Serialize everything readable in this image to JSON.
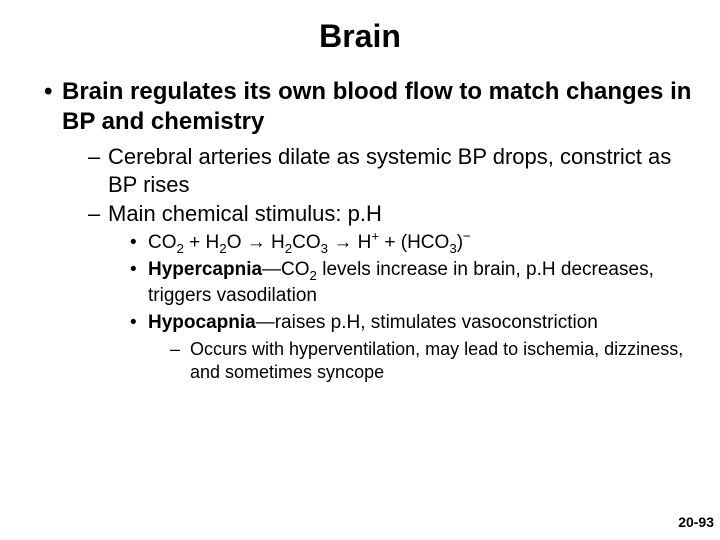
{
  "title": "Brain",
  "bullet_l1": "•",
  "bullet_l2": "–",
  "bullet_l3": "•",
  "bullet_l4": "–",
  "main_point": "Brain regulates its own blood flow to match changes in BP and chemistry",
  "sub1": "Cerebral arteries dilate as systemic BP drops, constrict as BP rises",
  "sub2": "Main chemical stimulus: p.H",
  "eq": {
    "co2": "CO",
    "two_a": "2",
    "plus1": " + H",
    "two_b": "2",
    "o": "O ",
    "arr1": "→",
    "h2": " H",
    "two_c": "2",
    "co3": "CO",
    "three_a": "3",
    "sp": " ",
    "arr2": "→",
    "hplus_h": " H",
    "hplus_sup": "+",
    "plus2": " + (HCO",
    "three_b": "3",
    "close": ")",
    "minus": "−"
  },
  "hypercap_term": "Hypercapnia",
  "hypercap_rest_a": "—CO",
  "hypercap_two": "2",
  "hypercap_rest_b": " levels increase in brain, p.H decreases, triggers vasodilation",
  "hypocap_term": "Hypocapnia",
  "hypocap_rest": "—raises p.H, stimulates vasoconstriction",
  "hypocap_detail": "Occurs with hyperventilation, may lead to ischemia, dizziness, and sometimes syncope",
  "page_number": "20-93",
  "colors": {
    "text": "#000000",
    "background": "#ffffff"
  },
  "fonts": {
    "title_pt": 32,
    "l1_pt": 24,
    "l2_pt": 22,
    "l3_pt": 19,
    "l4_pt": 18,
    "pagenum_pt": 14
  }
}
